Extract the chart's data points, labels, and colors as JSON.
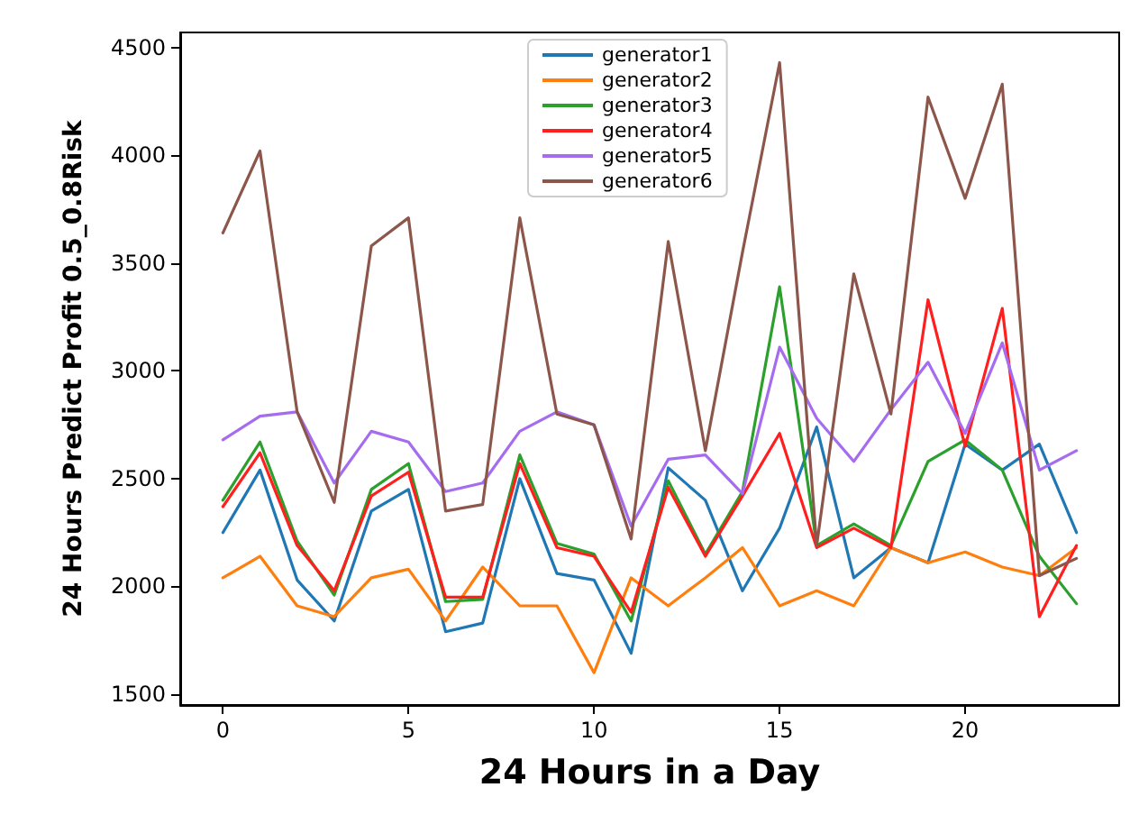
{
  "chart_data": {
    "type": "line",
    "xlabel": "24 Hours in a Day",
    "ylabel": "24 Hours Predict Profit 0.5_0.8Risk",
    "x": [
      0,
      1,
      2,
      3,
      4,
      5,
      6,
      7,
      8,
      9,
      10,
      11,
      12,
      13,
      14,
      15,
      16,
      17,
      18,
      19,
      20,
      21,
      22,
      23
    ],
    "xlim": [
      -1.15,
      24.15
    ],
    "xticks": [
      0,
      5,
      10,
      15,
      20
    ],
    "ylim": [
      1450,
      4570
    ],
    "yticks": [
      1500,
      2000,
      2500,
      3000,
      3500,
      4000,
      4500
    ],
    "grid": false,
    "legend": "top",
    "marker": "none",
    "line_style": "solid",
    "series": [
      {
        "name": "generator1",
        "color": "#1f77b4",
        "values": [
          2250,
          2540,
          2030,
          1840,
          2350,
          2450,
          1790,
          1830,
          2500,
          2060,
          2030,
          1690,
          2550,
          2400,
          1980,
          2270,
          2740,
          2040,
          2180,
          2110,
          2660,
          2540,
          2660,
          2250
        ]
      },
      {
        "name": "generator2",
        "color": "#ff7f0e",
        "values": [
          2040,
          2140,
          1910,
          1860,
          2040,
          2080,
          1840,
          2090,
          1910,
          1910,
          1600,
          2040,
          1910,
          2040,
          2180,
          1910,
          1980,
          1910,
          2180,
          2110,
          2160,
          2090,
          2050,
          2180
        ]
      },
      {
        "name": "generator3",
        "color": "#2ca02c",
        "values": [
          2400,
          2670,
          2210,
          1960,
          2450,
          2570,
          1930,
          1940,
          2610,
          2200,
          2150,
          1840,
          2490,
          2150,
          2440,
          3390,
          2190,
          2290,
          2190,
          2580,
          2680,
          2540,
          2140,
          1920
        ]
      },
      {
        "name": "generator4",
        "color": "#ff1f1f",
        "values": [
          2370,
          2620,
          2190,
          1980,
          2420,
          2530,
          1950,
          1950,
          2570,
          2180,
          2140,
          1880,
          2460,
          2140,
          2420,
          2710,
          2180,
          2270,
          2180,
          3330,
          2650,
          3290,
          1860,
          2190
        ]
      },
      {
        "name": "generator5",
        "color": "#a56cf0",
        "values": [
          2680,
          2790,
          2810,
          2480,
          2720,
          2670,
          2440,
          2480,
          2720,
          2810,
          2750,
          2280,
          2590,
          2610,
          2430,
          3110,
          2780,
          2580,
          2820,
          3040,
          2710,
          3130,
          2540,
          2630
        ]
      },
      {
        "name": "generator6",
        "color": "#8c564b",
        "values": [
          3640,
          4020,
          2810,
          2390,
          3580,
          3710,
          2350,
          2380,
          3710,
          2800,
          2750,
          2220,
          3600,
          2630,
          3550,
          4430,
          2190,
          3450,
          2800,
          4270,
          3800,
          4330,
          2050,
          2130
        ]
      }
    ]
  }
}
